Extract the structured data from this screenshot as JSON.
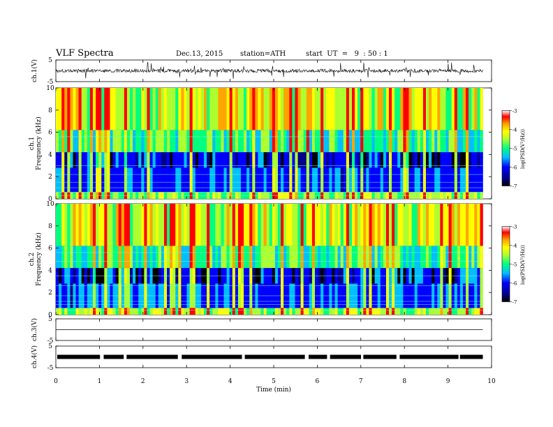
{
  "header": {
    "title": "VLF  Spectra",
    "date": "Dec.13, 2015",
    "station": "station=ATH",
    "start": "start  UT  =   9  : 50 : 1"
  },
  "chart_data": {
    "type": "spectrogram",
    "xlabel": "Time  (min)",
    "xlim": [
      0,
      10
    ],
    "xticks": [
      "0",
      "1",
      "2",
      "3",
      "4",
      "5",
      "6",
      "7",
      "8",
      "9",
      "10"
    ],
    "data_end_min": 9.8,
    "panels": [
      {
        "kind": "waveform",
        "ylabel": "ch.1(V)",
        "ylim": [
          -5,
          5
        ],
        "yticks": [
          "5",
          "-5"
        ],
        "amplitude_v": 1.5
      },
      {
        "kind": "spectrogram",
        "ylabel": "ch.1\nFrequency  (kHz)",
        "ylim": [
          0,
          10
        ],
        "yticks": [
          "0",
          "2",
          "4",
          "6",
          "8",
          "10"
        ],
        "colorbar": {
          "label": "log(PSD(V²/Hz))",
          "range": [
            -7,
            -3
          ],
          "ticks": [
            "-3",
            "-4",
            "-5",
            "-6",
            "-7"
          ]
        }
      },
      {
        "kind": "spectrogram",
        "ylabel": "ch.2\nFrequency  (kHz)",
        "ylim": [
          0,
          10
        ],
        "yticks": [
          "0",
          "2",
          "4",
          "6",
          "8",
          "10"
        ],
        "colorbar": {
          "label": "log(PSD(V²/Hz))",
          "range": [
            -7,
            -3
          ],
          "ticks": [
            "-3",
            "-4",
            "-5",
            "-6",
            "-7"
          ]
        }
      },
      {
        "kind": "waveform",
        "ylabel": "ch.3(V)",
        "ylim": [
          -5,
          5
        ],
        "yticks": [
          "5",
          "-5"
        ],
        "amplitude_v": 0
      },
      {
        "kind": "waveform",
        "ylabel": "ch.4(V)",
        "ylim": [
          -5,
          5
        ],
        "yticks": [
          "5",
          "-5"
        ],
        "amplitude_v": 0.4
      }
    ],
    "colors": [
      "#000000",
      "#00008b",
      "#0000ff",
      "#00bfff",
      "#00ff7f",
      "#adff2f",
      "#ffff00",
      "#ffa500",
      "#ff0000",
      "#ffffff"
    ]
  }
}
